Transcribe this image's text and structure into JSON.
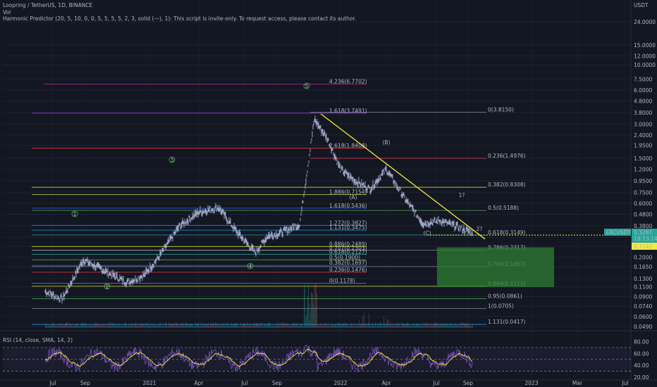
{
  "header": {
    "symbol_line": "Loopring / TetherUS, 1D, BINANCE",
    "vol_label": "Vol",
    "indicator_line": "Harmonic Predictor (20, 5, 10, 0, 0, 5, 5, 5, 5, 2, 3, solid (—), 1): This script is invite-only. To request access, please contact its author.",
    "currency": "USDT"
  },
  "price_axis": {
    "labels": [
      "24.0000",
      "15.0000",
      "12.0000",
      "10.0000",
      "7.5000",
      "6.0000",
      "4.8000",
      "3.8000",
      "3.0000",
      "2.4000",
      "1.9500",
      "1.5000",
      "1.2000",
      "0.9500",
      "0.7500",
      "0.6000",
      "0.4800",
      "0.3800",
      "0.3000",
      "0.2500",
      "0.2000",
      "0.1650",
      "0.1300",
      "0.1100",
      "0.0900",
      "0.0740",
      "0.0600",
      "0.0490"
    ],
    "current_price_tag": "0.3287",
    "current_symbol_tag": "LRCUSDT",
    "countdown_tag": "19:13:14",
    "target_tag": "0.3142"
  },
  "time_axis": {
    "labels": [
      "Jul",
      "Sep",
      "2021",
      "Apr",
      "Jul",
      "Sep",
      "2022",
      "Apr",
      "Jul",
      "Sep",
      "2023",
      "Mar",
      "Jul"
    ]
  },
  "rsi": {
    "label": "RSI (14, close, SMA, 14, 2)",
    "axis_labels": [
      "80.00",
      "60.00",
      "40.00",
      "20.00"
    ],
    "upper_band": 70,
    "lower_band": 30
  },
  "levels": [
    {
      "text": "4.236(6.7702)",
      "color": "#d020a0"
    },
    {
      "text": "1.618(3.7491)",
      "color": "#b040ff"
    },
    {
      "text": "0(3.8150)",
      "color": "#888c96"
    },
    {
      "text": "2.618(1.8408)",
      "color": "#f23645"
    },
    {
      "text": "0.236(1.4976)",
      "color": "#f23645"
    },
    {
      "text": "0.382(0.8308)",
      "color": "#cddc39"
    },
    {
      "text": "1.886(0.7154)",
      "color": "#cddc39"
    },
    {
      "text": "1.618(0.5436)",
      "color": "#2962ff"
    },
    {
      "text": "0.5(0.5188)",
      "color": "#4caf50"
    },
    {
      "text": "1.272(0.3827)",
      "color": "#2196f3"
    },
    {
      "text": "1.131(0.3475)",
      "color": "#2196f3"
    },
    {
      "text": "0.618(0.3149)",
      "color": "#26a69a"
    },
    {
      "text": "0.886(0.2489)",
      "color": "#cddc39"
    },
    {
      "text": "0.786(0.2317)",
      "color": "#888c96"
    },
    {
      "text": "0.707(0.2303)",
      "color": "#888c96"
    },
    {
      "text": "0.618(0.2127)",
      "color": "#26a69a"
    },
    {
      "text": "0.5(0.1900)",
      "color": "#4caf50"
    },
    {
      "text": "0.382(0.1697)",
      "color": "#2962ff"
    },
    {
      "text": "0.786(0.1657)",
      "color": "#888c96"
    },
    {
      "text": "0.236(0.1476)",
      "color": "#f23645"
    },
    {
      "text": "0(0.1178)",
      "color": "#888c96"
    },
    {
      "text": "0.886(0.1111)",
      "color": "#cddc39"
    },
    {
      "text": "0.95(0.0861)",
      "color": "#4caf50"
    },
    {
      "text": "1(0.0705)",
      "color": "#888c96"
    },
    {
      "text": "1.131(0.0417)",
      "color": "#2196f3"
    }
  ],
  "wave_labels": [
    "1",
    "2",
    "3",
    "4",
    "5",
    "(A)",
    "(B)",
    "(C)",
    "1?",
    "2?"
  ],
  "colors": {
    "background": "#131722",
    "candles": "#aab4d6",
    "trendline": "#f5eb3b",
    "target_box": "#2e7d32",
    "price_tag": "#26a69a",
    "rsi_line": "#7e57c2",
    "rsi_ma": "#f5eb3b"
  },
  "chart_data": {
    "type": "line",
    "title": "Loopring / TetherUS, 1D, BINANCE",
    "x": [
      "2020-07",
      "2020-08",
      "2020-09",
      "2020-10",
      "2020-11",
      "2020-12",
      "2021-01",
      "2021-02",
      "2021-03",
      "2021-04",
      "2021-05",
      "2021-06",
      "2021-07",
      "2021-08",
      "2021-09",
      "2021-10",
      "2021-11",
      "2021-12",
      "2022-01",
      "2022-02",
      "2022-03",
      "2022-04",
      "2022-05",
      "2022-06",
      "2022-07",
      "2022-08",
      "2022-09"
    ],
    "series": [
      {
        "values": [
          0.1,
          0.085,
          0.19,
          0.15,
          0.12,
          0.14,
          0.2,
          0.38,
          0.5,
          0.55,
          0.34,
          0.28,
          0.22,
          0.31,
          0.32,
          0.39,
          3.3,
          2.2,
          1.2,
          0.95,
          0.8,
          1.2,
          0.65,
          0.4,
          0.42,
          0.37,
          0.33
        ]
      }
    ],
    "ylim": [
      0.04,
      24
    ],
    "yscale": "log",
    "xlabel": "",
    "ylabel": ""
  }
}
